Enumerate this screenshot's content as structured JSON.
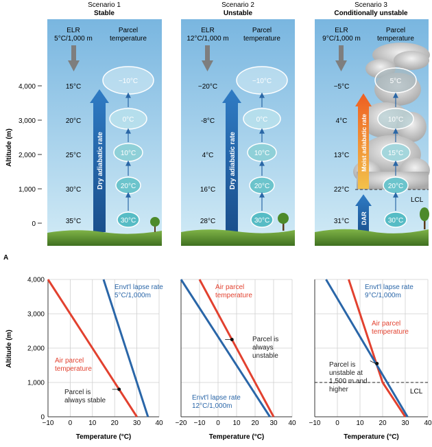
{
  "panel_label": "A",
  "altitude_label": "Altitude (m)",
  "temperature_label": "Temperature (°C)",
  "elr_label": "ELR",
  "parcel_label": [
    "Parcel",
    "temperature"
  ],
  "upper_alt_ticks": [
    "4,000",
    "3,000",
    "2,000",
    "1,000",
    "0"
  ],
  "scenarios": [
    {
      "heading": "Scenario 1",
      "subheading": "Stable",
      "elr_rate": "5°C/1,000 m",
      "env_temps": [
        "15°C",
        "20°C",
        "25°C",
        "30°C",
        "35°C"
      ],
      "parcels": [
        "−10°C",
        "0°C",
        "10°C",
        "20°C",
        "30°C"
      ],
      "arrow_label": "Dry adiabatic rate"
    },
    {
      "heading": "Scenario 2",
      "subheading": "Unstable",
      "elr_rate": "12°C/1,000 m",
      "env_temps": [
        "−20°C",
        "-8°C",
        "4°C",
        "16°C",
        "28°C"
      ],
      "parcels": [
        "−10°C",
        "0°C",
        "10°C",
        "20°C",
        "30°C"
      ],
      "arrow_label": "Dry adiabatic rate"
    },
    {
      "heading": "Scenario 3",
      "subheading": "Conditionally unstable",
      "elr_rate": "9°C/1,000 m",
      "env_temps": [
        "−5°C",
        "4°C",
        "13°C",
        "22°C",
        "31°C"
      ],
      "parcels": [
        "5°C",
        "10°C",
        "15°C",
        "20°C",
        "30°C"
      ],
      "moist_label": "Moist adiabatic rate",
      "dar_label": "DAR",
      "lcl_label": "LCL"
    }
  ],
  "colors": {
    "sky_top": "#79b6e0",
    "sky_bottom": "#d2ebf6",
    "arrow_blue": "#2b67a6",
    "arrow_orange": "#f07c2a",
    "parcel_fill": "#57bcc5",
    "grass": "#5a8f2c",
    "line_red": "#e2412f",
    "line_blue": "#2a66a8",
    "gray_arrow": "#7e7e7e"
  },
  "chart_data": [
    {
      "type": "line",
      "xlabel": "Temperature (°C)",
      "ylabel": "Altitude (m)",
      "xlim": [
        -10,
        40
      ],
      "ylim": [
        0,
        4000
      ],
      "xticks": [
        -10,
        0,
        10,
        20,
        30,
        40
      ],
      "yticks": [
        0,
        1000,
        2000,
        3000,
        4000
      ],
      "ytick_labels": [
        "0",
        "1,000",
        "2,000",
        "3,000",
        "4,000"
      ],
      "series": [
        {
          "name": "Air parcel temperature",
          "color": "#e2412f",
          "x": [
            30,
            -10
          ],
          "y": [
            0,
            4000
          ]
        },
        {
          "name": "Envt'l lapse rate",
          "color": "#2a66a8",
          "x": [
            35,
            15
          ],
          "y": [
            0,
            4000
          ]
        }
      ],
      "annotations": [
        {
          "id": "air",
          "lines": [
            "Air parcel",
            "temperature"
          ],
          "color": "#e2412f"
        },
        {
          "id": "env",
          "lines": [
            "Envt'l lapse rate",
            "5°C/1,000m"
          ],
          "color": "#2a66a8"
        },
        {
          "id": "note",
          "lines": [
            "Parcel is",
            "always stable"
          ],
          "color": "#222222"
        }
      ],
      "marker": {
        "x": 22,
        "y": 800
      }
    },
    {
      "type": "line",
      "xlabel": "Temperature (°C)",
      "ylabel": "",
      "xlim": [
        -20,
        40
      ],
      "ylim": [
        0,
        4000
      ],
      "xticks": [
        -20,
        -10,
        0,
        10,
        20,
        30,
        40
      ],
      "yticks": [
        0,
        1000,
        2000,
        3000,
        4000
      ],
      "series": [
        {
          "name": "Air parcel temperature",
          "color": "#e2412f",
          "x": [
            30,
            -10
          ],
          "y": [
            0,
            4000
          ]
        },
        {
          "name": "Envt'l lapse rate",
          "color": "#2a66a8",
          "x": [
            28,
            -20
          ],
          "y": [
            0,
            4000
          ]
        }
      ],
      "annotations": [
        {
          "id": "air",
          "lines": [
            "Air parcel",
            "temperature"
          ],
          "color": "#e2412f"
        },
        {
          "id": "env",
          "lines": [
            "Envt'l lapse rate",
            "12°C/1,000m"
          ],
          "color": "#2a66a8"
        },
        {
          "id": "note",
          "lines": [
            "Parcel is",
            "always",
            "unstable"
          ],
          "color": "#222222"
        }
      ],
      "marker": {
        "x": 7.5,
        "y": 2250
      }
    },
    {
      "type": "line",
      "xlabel": "Temperature (°C)",
      "ylabel": "",
      "xlim": [
        -10,
        40
      ],
      "ylim": [
        0,
        4000
      ],
      "xticks": [
        -10,
        0,
        10,
        20,
        30,
        40
      ],
      "yticks": [
        0,
        1000,
        2000,
        3000,
        4000
      ],
      "series": [
        {
          "name": "Air parcel temperature",
          "color": "#e2412f",
          "x": [
            30,
            20,
            5
          ],
          "y": [
            0,
            1000,
            4000
          ]
        },
        {
          "name": "Envt'l lapse rate",
          "color": "#2a66a8",
          "x": [
            31,
            -5
          ],
          "y": [
            0,
            4000
          ]
        }
      ],
      "lcl": {
        "y": 1000,
        "label": "LCL"
      },
      "annotations": [
        {
          "id": "env",
          "lines": [
            "Envt'l lapse rate",
            "9°C/1,000m"
          ],
          "color": "#2a66a8"
        },
        {
          "id": "air",
          "lines": [
            "Air parcel",
            "temperature"
          ],
          "color": "#e2412f"
        },
        {
          "id": "note",
          "lines": [
            "Parcel is",
            "unstable at",
            "1,500 m and",
            "higher"
          ],
          "color": "#222222"
        }
      ],
      "marker": {
        "x": 17.5,
        "y": 1550
      }
    }
  ]
}
